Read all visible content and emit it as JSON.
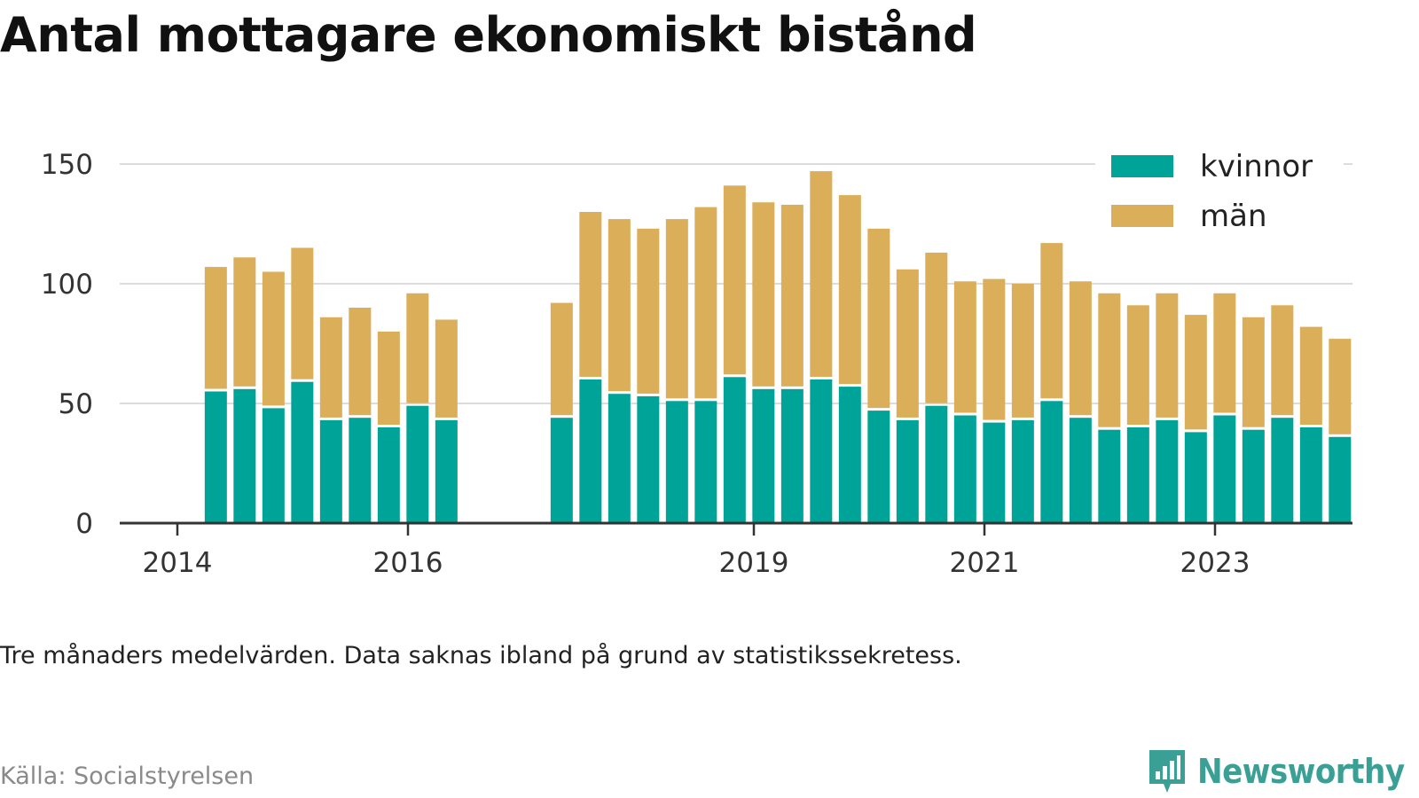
{
  "title": "Antal mottagare ekonomiskt bistånd",
  "note": "Tre månaders medelvärden. Data saknas ibland på grund av statistikssekretess.",
  "source": "Källa: Socialstyrelsen",
  "brand": {
    "name": "Newsworthy",
    "icon": "bar-chart-speech-bubble-icon"
  },
  "colors": {
    "kvinnor": "#00a398",
    "man": "#dbae59",
    "axis": "#333333",
    "grid": "#dcdcdc",
    "brand": "#3aa095"
  },
  "chart_data": {
    "type": "bar",
    "stacked": true,
    "title": "Antal mottagare ekonomiskt bistånd",
    "ylim": [
      0,
      150
    ],
    "yticks": [
      0,
      50,
      100,
      150
    ],
    "grid": true,
    "legend_position": "top-right",
    "xticks": [
      {
        "label": "2014",
        "date": "2014-01"
      },
      {
        "label": "2016",
        "date": "2016-01"
      },
      {
        "label": "2019",
        "date": "2019-01"
      },
      {
        "label": "2021",
        "date": "2021-01"
      },
      {
        "label": "2023",
        "date": "2023-01"
      }
    ],
    "categories": [
      "2014-05",
      "2014-08",
      "2014-11",
      "2015-02",
      "2015-05",
      "2015-08",
      "2015-11",
      "2016-02",
      "2016-05",
      "2017-05",
      "2017-08",
      "2017-11",
      "2018-02",
      "2018-05",
      "2018-08",
      "2018-11",
      "2019-02",
      "2019-05",
      "2019-08",
      "2019-11",
      "2020-02",
      "2020-05",
      "2020-08",
      "2020-11",
      "2021-02",
      "2021-05",
      "2021-08",
      "2021-11",
      "2022-02",
      "2022-05",
      "2022-08",
      "2022-11",
      "2023-02",
      "2023-05",
      "2023-08",
      "2023-11",
      "2024-02"
    ],
    "series": [
      {
        "name": "kvinnor",
        "values": [
          55,
          56,
          48,
          59,
          43,
          44,
          40,
          49,
          43,
          44,
          60,
          54,
          53,
          51,
          51,
          61,
          56,
          56,
          60,
          57,
          47,
          43,
          49,
          45,
          42,
          43,
          51,
          44,
          39,
          40,
          43,
          38,
          45,
          39,
          44,
          40,
          36
        ]
      },
      {
        "name": "män",
        "values": [
          52,
          55,
          57,
          56,
          43,
          46,
          40,
          47,
          42,
          48,
          70,
          73,
          70,
          76,
          81,
          80,
          78,
          77,
          87,
          80,
          76,
          63,
          64,
          56,
          60,
          57,
          66,
          57,
          57,
          51,
          53,
          49,
          51,
          47,
          47,
          42,
          41
        ]
      }
    ]
  }
}
